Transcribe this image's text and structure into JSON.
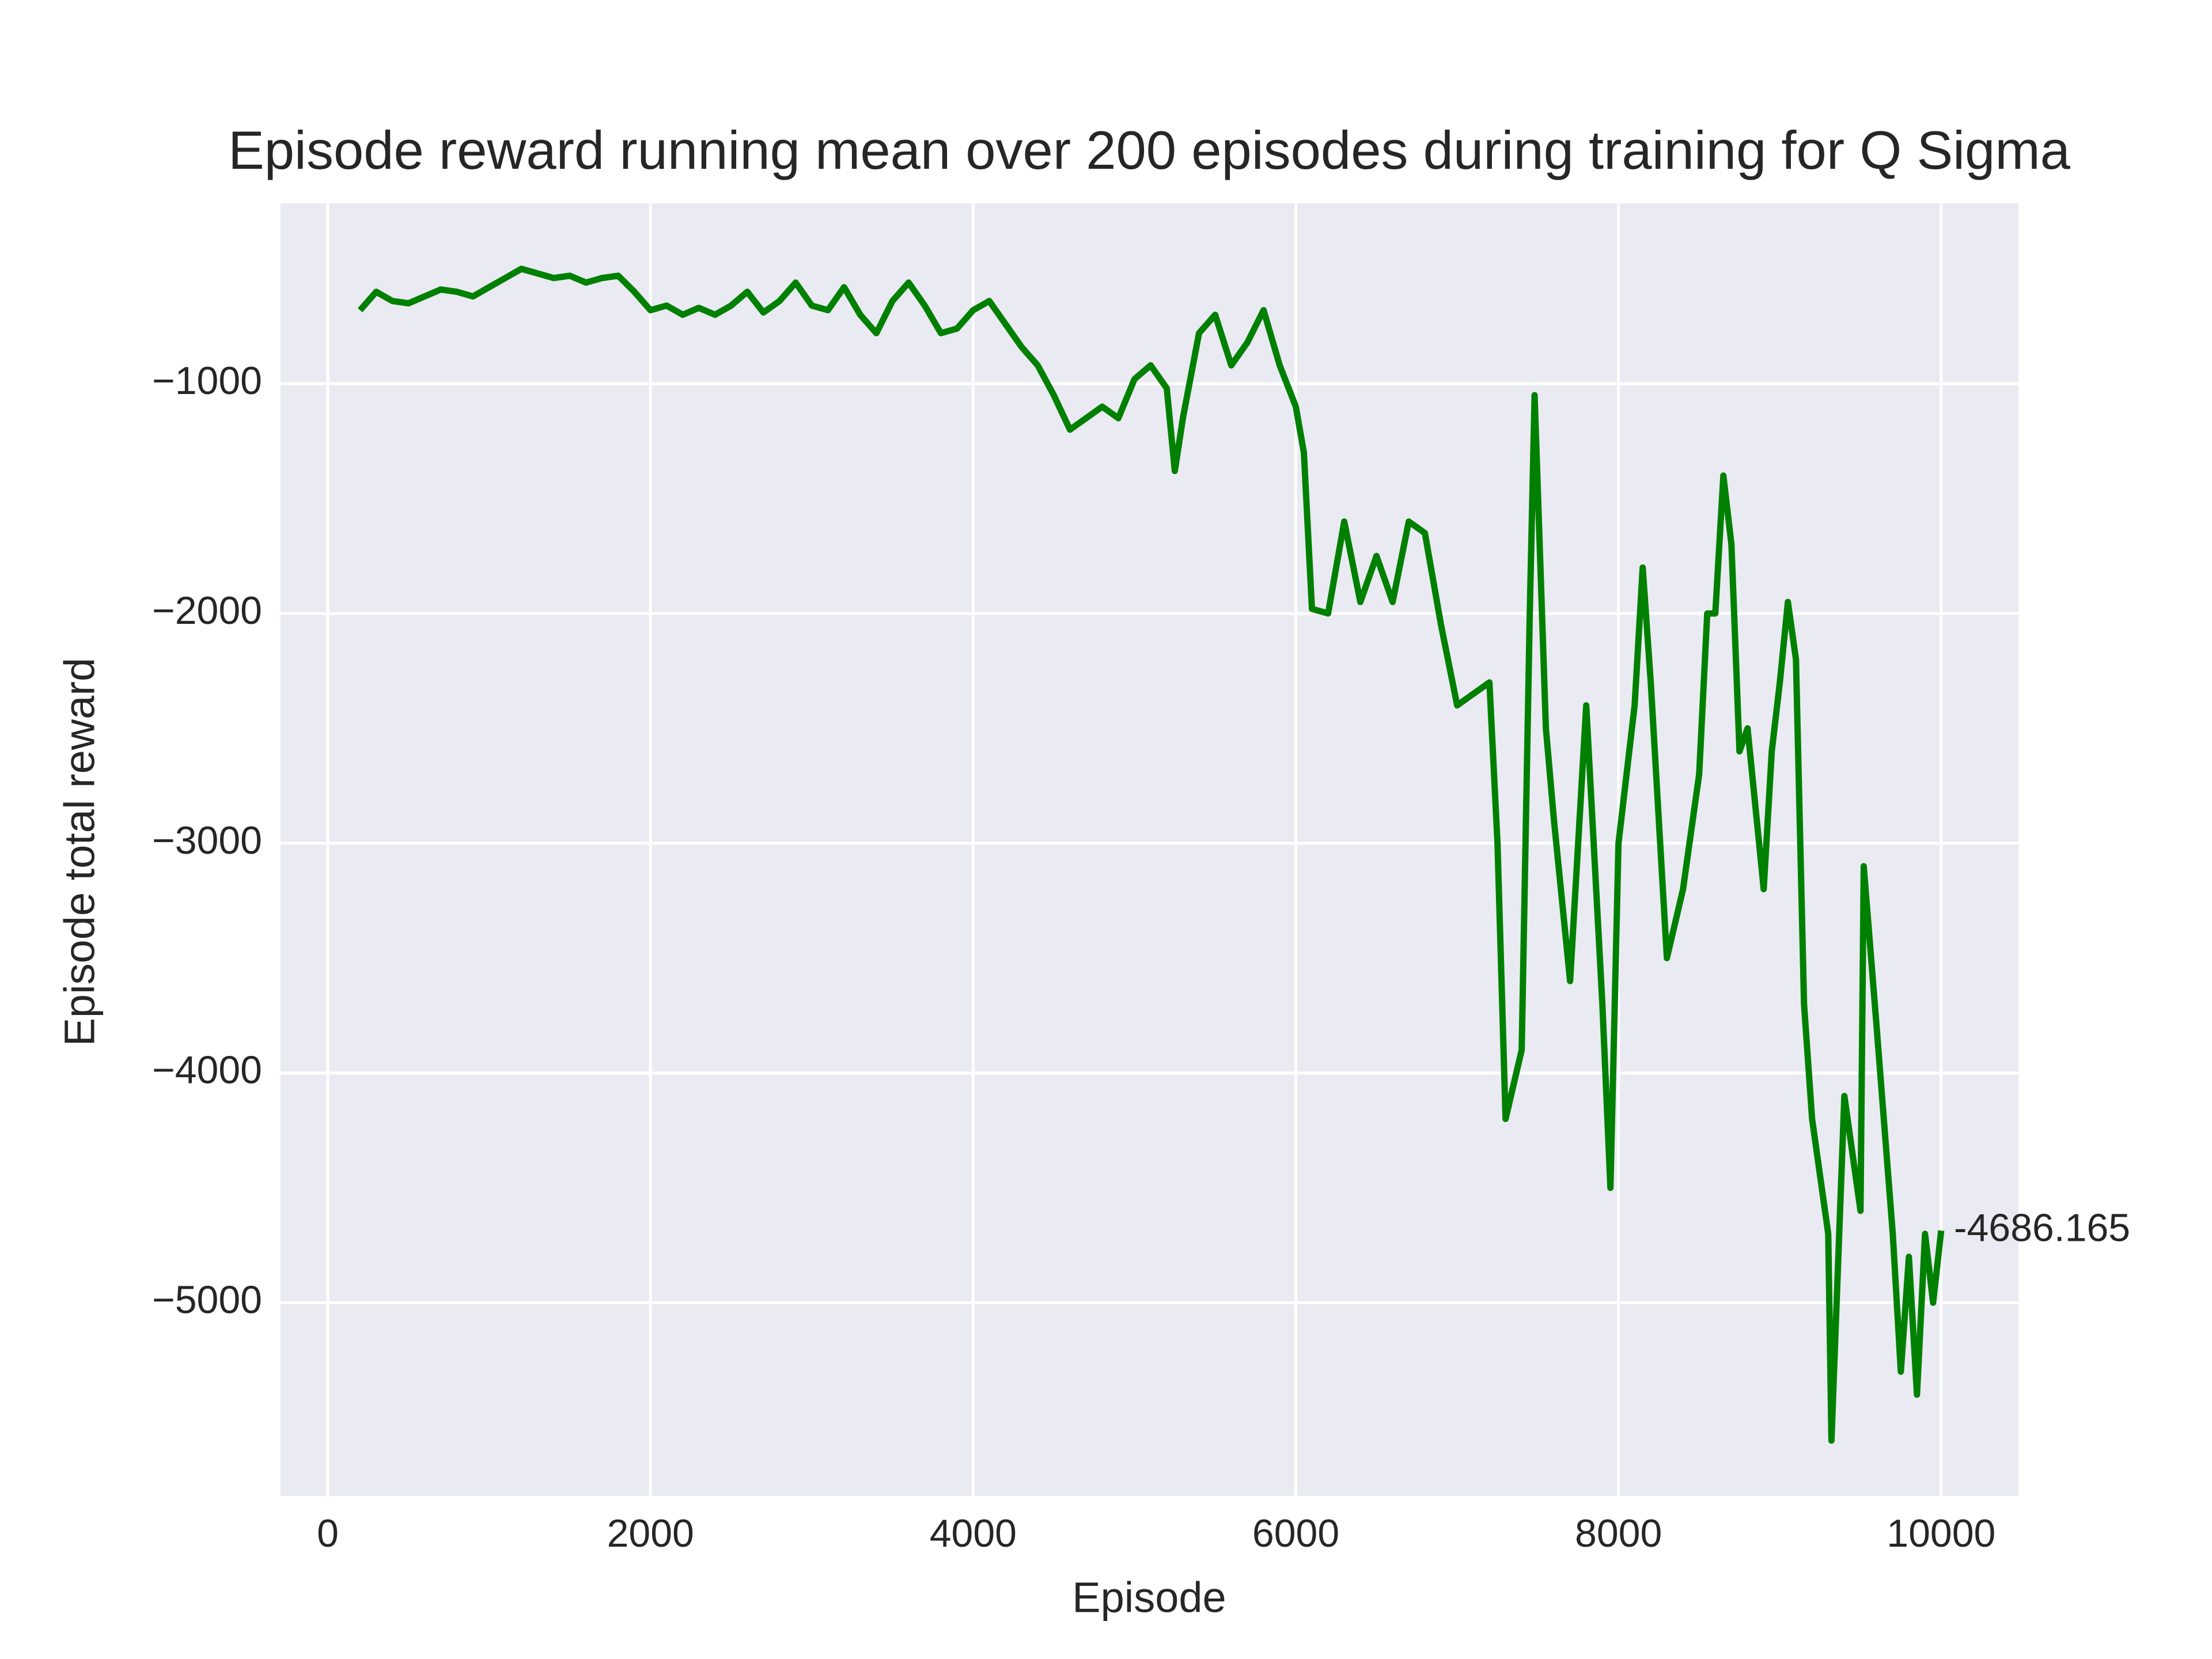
{
  "chart_data": {
    "type": "line",
    "title": "Episode reward running mean over 200 episodes during training for Q Sigma",
    "xlabel": "Episode",
    "ylabel": "Episode total reward",
    "x": [
      200,
      300,
      400,
      500,
      600,
      700,
      800,
      900,
      1000,
      1100,
      1200,
      1300,
      1400,
      1500,
      1600,
      1700,
      1800,
      1900,
      2000,
      2100,
      2200,
      2300,
      2400,
      2500,
      2600,
      2700,
      2800,
      2900,
      3000,
      3100,
      3200,
      3300,
      3400,
      3500,
      3600,
      3700,
      3800,
      3900,
      4000,
      4100,
      4200,
      4300,
      4400,
      4500,
      4600,
      4700,
      4800,
      4900,
      5000,
      5100,
      5200,
      5250,
      5300,
      5400,
      5500,
      5600,
      5700,
      5800,
      5900,
      6000,
      6050,
      6100,
      6200,
      6300,
      6400,
      6500,
      6600,
      6700,
      6800,
      6900,
      7000,
      7100,
      7200,
      7250,
      7300,
      7400,
      7450,
      7480,
      7550,
      7600,
      7700,
      7800,
      7900,
      7950,
      8000,
      8100,
      8150,
      8200,
      8300,
      8400,
      8500,
      8550,
      8600,
      8650,
      8700,
      8750,
      8800,
      8900,
      8950,
      9000,
      9050,
      9100,
      9150,
      9200,
      9300,
      9320,
      9400,
      9500,
      9520,
      9600,
      9700,
      9750,
      9800,
      9850,
      9900,
      9950,
      10000
    ],
    "series": [
      {
        "name": "Q Sigma",
        "color": "#008000",
        "values": [
          -680,
          -600,
          -640,
          -650,
          -620,
          -590,
          -600,
          -620,
          -580,
          -540,
          -500,
          -520,
          -540,
          -530,
          -560,
          -540,
          -530,
          -600,
          -680,
          -660,
          -700,
          -670,
          -700,
          -660,
          -600,
          -690,
          -640,
          -560,
          -660,
          -680,
          -580,
          -700,
          -780,
          -640,
          -560,
          -660,
          -780,
          -760,
          -680,
          -640,
          -740,
          -840,
          -920,
          -1050,
          -1200,
          -1150,
          -1100,
          -1150,
          -980,
          -920,
          -1020,
          -1380,
          -1150,
          -780,
          -700,
          -920,
          -820,
          -680,
          -920,
          -1100,
          -1300,
          -1980,
          -2000,
          -1600,
          -1950,
          -1750,
          -1950,
          -1600,
          -1650,
          -2050,
          -2400,
          -2350,
          -2300,
          -3000,
          -4200,
          -3900,
          -2000,
          -1050,
          -2500,
          -2900,
          -3600,
          -2400,
          -3700,
          -4500,
          -3000,
          -2400,
          -1800,
          -2300,
          -3500,
          -3200,
          -2700,
          -2000,
          -2000,
          -1400,
          -1700,
          -2600,
          -2500,
          -3200,
          -2600,
          -2300,
          -1950,
          -2200,
          -3700,
          -4200,
          -4700,
          -5600,
          -4100,
          -4600,
          -3100,
          -3800,
          -4700,
          -5300,
          -4800,
          -5400,
          -4700,
          -5000,
          -4686.165
        ]
      }
    ],
    "end_label": "-4686.165",
    "xlim": [
      -293,
      10479
    ],
    "xticks": [
      0,
      2000,
      4000,
      6000,
      8000,
      10000
    ],
    "ylim": [
      -5841,
      -215
    ],
    "yticks": [
      {
        "value": -5000,
        "label": "−5000"
      },
      {
        "value": -4000,
        "label": "−4000"
      },
      {
        "value": -3000,
        "label": "−3000"
      },
      {
        "value": -2000,
        "label": "−2000"
      },
      {
        "value": -1000,
        "label": "−1000"
      }
    ],
    "grid": true
  }
}
